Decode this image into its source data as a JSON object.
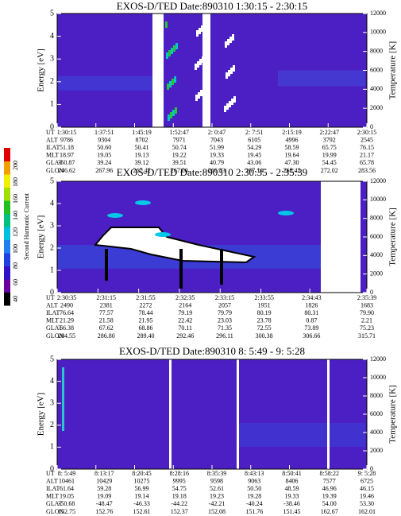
{
  "panels": [
    {
      "title": "EXOS-D/TED   Date:890310   1:30:15 - 2:30:15",
      "y_label": "Energy [eV]",
      "y2_label": "Temperature [K]",
      "yticks": [
        "0",
        "1",
        "2",
        "3",
        "4",
        "5"
      ],
      "y2ticks": [
        "0",
        "2000",
        "4000",
        "6000",
        "8000",
        "10000",
        "12000"
      ],
      "rows": [
        {
          "label": "UT",
          "values": [
            "1:30:15",
            "1:37:51",
            "1:45:19",
            "1:52:47",
            "2: 0:47",
            "2: 7:51",
            "2:15:19",
            "2:22:47",
            "2:30:15"
          ]
        },
        {
          "label": "ALT",
          "values": [
            "9786",
            "9304",
            "8702",
            "7971",
            "7043",
            "6105",
            "4996",
            "3792",
            "2545"
          ]
        },
        {
          "label": "ILAT",
          "values": [
            "51.18",
            "50.60",
            "50.41",
            "50.74",
            "51.99",
            "54.29",
            "58.59",
            "65.75",
            "76.15"
          ]
        },
        {
          "label": "MLT",
          "values": [
            "18.97",
            "19.05",
            "19.13",
            "19.22",
            "19.33",
            "19.45",
            "19.64",
            "19.99",
            "21.17"
          ]
        },
        {
          "label": "GLAT",
          "values": [
            "-60.87",
            "39.24",
            "39.12",
            "39.51",
            "40.79",
            "43.06",
            "47.30",
            "54.45",
            "65.78"
          ]
        },
        {
          "label": "GLON",
          "values": [
            "246.62",
            "267.96",
            "267.42",
            "267.00",
            "266.83",
            "267.14",
            "268.42",
            "272.02",
            "283.56"
          ]
        }
      ]
    },
    {
      "title": "EXOS-D/TED   Date:890310   2:30:35 - 2:35:39",
      "y_label": "Energy [eV]",
      "y2_label": "Temperature [K]",
      "yticks": [
        "0",
        "1",
        "2",
        "3",
        "4",
        "5"
      ],
      "y2ticks": [
        "0",
        "2000",
        "4000",
        "6000",
        "8000",
        "10000",
        "12000"
      ],
      "rows": [
        {
          "label": "UT",
          "values": [
            "2:30:35",
            "2:31:15",
            "2:31:55",
            "2:32:35",
            "2:33:15",
            "2:33:55",
            "2:34:43",
            "2:35:39"
          ]
        },
        {
          "label": "ALT",
          "values": [
            "2490",
            "2381",
            "2272",
            "2164",
            "2057",
            "1951",
            "1826",
            "1683"
          ]
        },
        {
          "label": "ILAT",
          "values": [
            "76.64",
            "77.57",
            "78.44",
            "79.19",
            "79.79",
            "80.19",
            "80.31",
            "79.90"
          ]
        },
        {
          "label": "MLT",
          "values": [
            "21.29",
            "21.58",
            "21.95",
            "22.42",
            "23.03",
            "23.78",
            "0.87",
            "2.21"
          ]
        },
        {
          "label": "GLAT",
          "values": [
            "66.38",
            "67.62",
            "68.86",
            "70.11",
            "71.35",
            "72.55",
            "73.89",
            "75.23"
          ]
        },
        {
          "label": "GLON",
          "values": [
            "284.55",
            "286.80",
            "289.40",
            "292.46",
            "296.11",
            "300.38",
            "306.66",
            "315.71"
          ]
        }
      ]
    },
    {
      "title": "EXOS-D/TED   Date:890310   8: 5:49 - 9: 5:28",
      "y_label": "Energy [eV]",
      "y2_label": "Temperature [K]",
      "yticks": [
        "0",
        "1",
        "2",
        "3",
        "4",
        "5"
      ],
      "y2ticks": [
        "0",
        "2000",
        "4000",
        "6000",
        "8000",
        "10000",
        "12000"
      ],
      "rows": [
        {
          "label": "UT",
          "values": [
            "8: 5:49",
            "8:13:17",
            "8:20:45",
            "8:28:16",
            "8:35:39",
            "8:43:13",
            "8:50:41",
            "8:58:22",
            "9: 5:28"
          ]
        },
        {
          "label": "ALT",
          "values": [
            "10461",
            "10429",
            "10275",
            "9995",
            "9598",
            "9063",
            "8406",
            "7577",
            "6725"
          ]
        },
        {
          "label": "ILAT",
          "values": [
            "61.64",
            "59.28",
            "56.99",
            "54.75",
            "52.61",
            "50.50",
            "48.59",
            "46.96",
            "46.15"
          ]
        },
        {
          "label": "MLT",
          "values": [
            "19.05",
            "19.09",
            "19.14",
            "19.18",
            "19.23",
            "19.28",
            "19.33",
            "19.39",
            "19.46"
          ]
        },
        {
          "label": "GLAT",
          "values": [
            "-50.68",
            "-48.47",
            "-46.33",
            "-44.22",
            "-42.21",
            "-40.24",
            "-38.46",
            "54.00",
            "53.30"
          ]
        },
        {
          "label": "GLON",
          "values": [
            "152.75",
            "152.76",
            "152.61",
            "152.37",
            "152.08",
            "151.76",
            "151.45",
            "162.67",
            "162.01"
          ]
        }
      ]
    }
  ],
  "colorbar": {
    "label": "Second Harmonic Current",
    "ticks": [
      "40",
      "60",
      "80",
      "100",
      "120",
      "140",
      "160",
      "180",
      "200"
    ]
  }
}
